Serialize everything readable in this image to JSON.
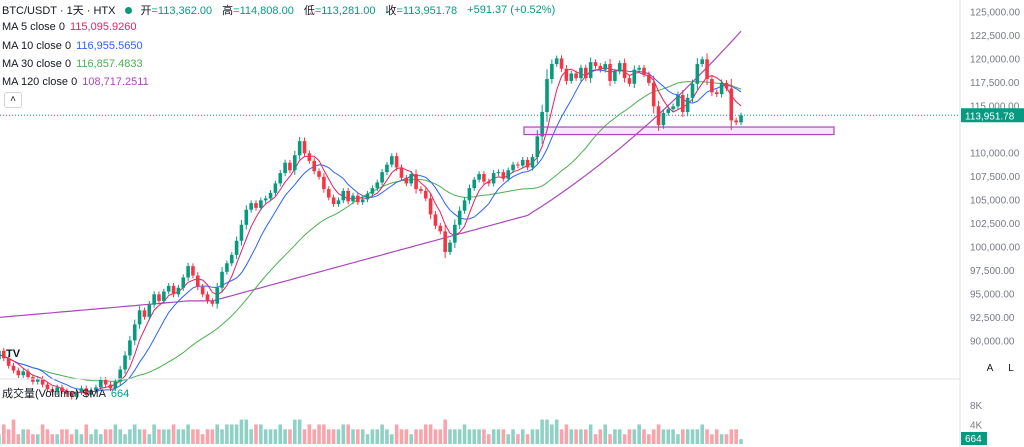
{
  "header": {
    "symbol": "BTC/USDT · 1天 · HTX",
    "status_color": "#089981",
    "open_label": "开",
    "open_value": "=113,362.00",
    "high_label": "高",
    "high_value": "=114,808.00",
    "low_label": "低",
    "low_value": "=113,281.00",
    "close_label": "收",
    "close_value": "=113,951.78",
    "change_value": "+591.37 (+0.52%)"
  },
  "legend": [
    {
      "label": "MA 5 close 0",
      "value": "115,095.9260",
      "color": "#e91e63"
    },
    {
      "label": "MA 10 close 0",
      "value": "116,955.5650",
      "color": "#2962ff"
    },
    {
      "label": "MA 30 close 0",
      "value": "116,857.4833",
      "color": "#4caf50"
    },
    {
      "label": "MA 120 close 0",
      "value": "108,717.2511",
      "color": "#ab47bc"
    }
  ],
  "collapse_icon": "chevron-up-icon",
  "volume_legend": {
    "label": "成交量(Volume) SMA",
    "value": "664"
  },
  "buttons": {
    "auto": "A",
    "log": "L"
  },
  "logo_text": "TV",
  "chart_data": {
    "type": "candlestick",
    "timeframe": "1D",
    "y_ticks": [
      "125,000.00",
      "122,500.00",
      "120,000.00",
      "117,500.00",
      "115,000.00",
      "110,000.00",
      "107,500.00",
      "105,000.00",
      "102,500.00",
      "100,000.00",
      "97,500.00",
      "95,000.00",
      "92,500.00",
      "90,000.00"
    ],
    "ylim": [
      86000,
      126000
    ],
    "last_price_label": "113,951.78",
    "last_price": 113951.78,
    "volume_ticks": [
      "8K",
      "4K"
    ],
    "volume_last_label": "664",
    "up_color": "#089981",
    "down_color": "#f23645",
    "ma_colors": {
      "ma5": "#e91e63",
      "ma10": "#2962ff",
      "ma30": "#4caf50",
      "ma120": "#ab47bc"
    },
    "support_zone": {
      "low": 111900,
      "high": 112700,
      "color": "#ab47bc"
    },
    "closes": [
      88000,
      88900,
      88100,
      87300,
      86800,
      86300,
      86700,
      86100,
      85600,
      85900,
      85300,
      84800,
      84500,
      85000,
      84600,
      84300,
      84000,
      84500,
      84900,
      84200,
      84700,
      85000,
      85800,
      85300,
      84900,
      85600,
      86900,
      88400,
      90000,
      91700,
      93200,
      92500,
      93800,
      94900,
      94200,
      95200,
      95800,
      94900,
      95600,
      96700,
      97900,
      96900,
      95700,
      94900,
      94200,
      93900,
      95600,
      97300,
      98200,
      99100,
      100600,
      102300,
      103900,
      104600,
      104100,
      104900,
      105100,
      105700,
      106700,
      107800,
      108900,
      108100,
      109700,
      111200,
      109900,
      109100,
      108000,
      107400,
      106100,
      105200,
      104500,
      104900,
      105900,
      104800,
      105400,
      104700,
      105000,
      105600,
      106200,
      106800,
      107900,
      108700,
      109600,
      108400,
      107300,
      106700,
      107700,
      106100,
      105900,
      105100,
      103400,
      102200,
      101600,
      99400,
      100400,
      102300,
      103800,
      104900,
      106200,
      107100,
      107700,
      106900,
      106700,
      107800,
      107900,
      107200,
      108100,
      108700,
      108600,
      109200,
      108400,
      109500,
      111700,
      114300,
      117800,
      119400,
      120000,
      118900,
      117600,
      118400,
      117900,
      119000,
      117900,
      119600,
      119200,
      118800,
      119400,
      117600,
      118600,
      119500,
      117900,
      117300,
      118800,
      119000,
      118300,
      117400,
      114900,
      112900,
      114200,
      114600,
      114900,
      116100,
      114300,
      115800,
      117300,
      119400,
      119900,
      117800,
      116400,
      116200,
      117400,
      116800,
      113400,
      113200,
      113950
    ],
    "volumes": [
      3,
      2,
      4,
      3,
      5,
      2,
      3,
      3,
      2,
      2,
      4,
      3,
      2,
      2,
      3,
      3,
      2,
      3,
      2,
      4,
      2,
      3,
      2,
      3,
      3,
      4,
      3,
      2,
      3,
      4,
      3,
      3,
      2,
      4,
      3,
      3,
      3,
      4,
      3,
      3,
      4,
      3,
      3,
      2,
      3,
      3,
      4,
      3,
      4,
      4,
      4,
      5,
      5,
      3,
      4,
      4,
      3,
      3,
      3,
      4,
      3,
      3,
      5,
      5,
      3,
      4,
      3,
      4,
      4,
      3,
      3,
      3,
      4,
      4,
      3,
      3,
      3,
      2,
      3,
      3,
      4,
      3,
      2,
      4,
      3,
      3,
      2,
      3,
      3,
      4,
      4,
      3,
      3,
      5,
      3,
      3,
      3,
      4,
      3,
      3,
      3,
      3,
      2,
      3,
      3,
      3,
      2,
      3,
      2,
      3,
      2,
      3,
      3,
      5,
      5,
      4,
      5,
      3,
      4,
      3,
      3,
      3,
      3,
      4,
      2,
      3,
      4,
      2,
      3,
      3,
      2,
      3,
      3,
      4,
      3,
      2,
      3,
      4,
      3,
      3,
      3,
      2,
      3,
      3,
      3,
      3,
      4,
      3,
      2,
      3,
      2,
      2,
      3,
      3,
      1
    ]
  }
}
